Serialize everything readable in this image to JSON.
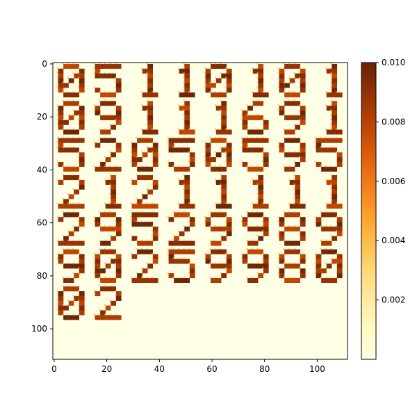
{
  "chart_data": {
    "type": "heatmap",
    "title": "",
    "xlabel": "",
    "ylabel": "",
    "x_range": [
      -0.5,
      111.5
    ],
    "y_range": [
      111.5,
      -0.5
    ],
    "x_ticks": [
      0,
      20,
      40,
      60,
      80,
      100
    ],
    "y_ticks": [
      0,
      20,
      40,
      60,
      80,
      100
    ],
    "grid": false,
    "colormap": "YlOrBr",
    "colorbar": {
      "min": 0.0,
      "max": 0.01,
      "ticks": [
        "0.002",
        "0.004",
        "0.006",
        "0.008",
        "0.010"
      ],
      "tick_values": [
        0.002,
        0.004,
        0.006,
        0.008,
        0.01
      ]
    },
    "layout": {
      "grid_cols": 8,
      "grid_rows": 7,
      "tile_size_data_units": 14
    },
    "digits": [
      "0",
      "5",
      "1",
      "1",
      "0",
      "1",
      "0",
      "1",
      "0",
      "9",
      "1",
      "1",
      "1",
      "6",
      "9",
      "1",
      "5",
      "2",
      "0",
      "5",
      "0",
      "5",
      "9",
      "5",
      "2",
      "1",
      "2",
      "1",
      "1",
      "1",
      "1",
      "1",
      "2",
      "9",
      "5",
      "2",
      "9",
      "9",
      "8",
      "9",
      "9",
      "0",
      "2",
      "5",
      "9",
      "9",
      "8",
      "0",
      "0",
      "2"
    ],
    "colors": {
      "background": "#ffffe5",
      "ink": "#7a2f05"
    }
  }
}
